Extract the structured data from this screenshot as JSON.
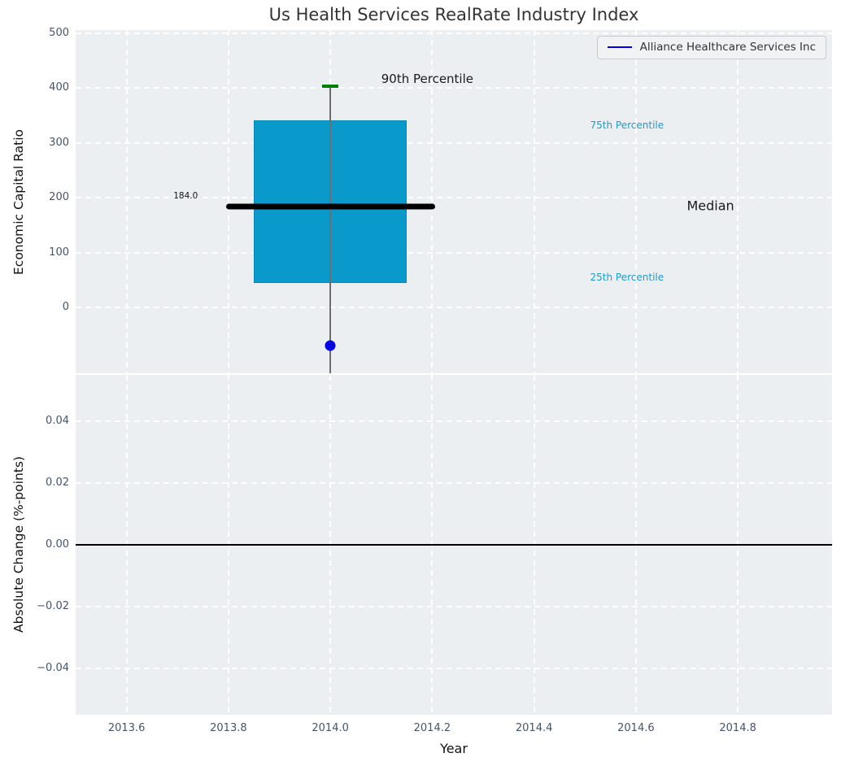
{
  "title": "Us Health Services RealRate Industry Index",
  "legend": {
    "label": "Alliance Healthcare Services Inc",
    "line_color": "#0000e6"
  },
  "colors": {
    "axes_background": "#eceff1",
    "grid": "#ffffff",
    "box_fill": "#0a99cb",
    "median_line": "#000000",
    "p90_cap": "#008000",
    "whisker": "#6e6e6e",
    "company_point": "#0000e6",
    "percentile_text": "#1e9bc7",
    "tick_text": "#46536b"
  },
  "chart_data": [
    {
      "type": "boxplot",
      "title": "Us Health Services RealRate Industry Index",
      "xlabel": "",
      "ylabel": "Economic Capital Ratio",
      "xlim": [
        2013.5,
        2014.985
      ],
      "ylim": [
        -120,
        506
      ],
      "grid": true,
      "legend_position": "upper right",
      "show_xtick_labels": false,
      "xticks": [
        {
          "v": 2013.6,
          "label": "2013.6"
        },
        {
          "v": 2013.8,
          "label": "2013.8"
        },
        {
          "v": 2014.0,
          "label": "2014.0"
        },
        {
          "v": 2014.2,
          "label": "2014.2"
        },
        {
          "v": 2014.4,
          "label": "2014.4"
        },
        {
          "v": 2014.6,
          "label": "2014.6"
        },
        {
          "v": 2014.8,
          "label": "2014.8"
        }
      ],
      "yticks": [
        {
          "v": 0,
          "label": "0"
        },
        {
          "v": 100,
          "label": "100"
        },
        {
          "v": 200,
          "label": "200"
        },
        {
          "v": 300,
          "label": "300"
        },
        {
          "v": 400,
          "label": "400"
        },
        {
          "v": 500,
          "label": "500"
        }
      ],
      "box": {
        "x": 2014.0,
        "box_width": 0.3,
        "q25": 45,
        "median": 184,
        "q75": 342,
        "p90": 404,
        "median_line_width": 0.41,
        "cap_width": 0.032,
        "whisker_low_clipped_at": -120
      },
      "company_point": {
        "name": "Alliance Healthcare Services Inc",
        "x": 2014.0,
        "y": -70
      },
      "annotations": {
        "p90": {
          "text": "90th Percentile",
          "x": 2014.1,
          "y": 417,
          "align": "left"
        },
        "p75": {
          "text": "75th Percentile",
          "x": 2014.51,
          "y": 333,
          "align": "left"
        },
        "median": {
          "text": "Median",
          "x": 2014.7,
          "y": 186,
          "align": "left"
        },
        "p25": {
          "text": "25th Percentile",
          "x": 2014.51,
          "y": 55,
          "align": "left"
        },
        "median_value": {
          "text": "184.0",
          "x": 2013.74,
          "y": 204,
          "align": "right"
        }
      }
    },
    {
      "type": "line",
      "xlabel": "Year",
      "ylabel": "Absolute Change (%-points)",
      "xlim": [
        2013.5,
        2014.985
      ],
      "ylim": [
        -0.055,
        0.055
      ],
      "grid": true,
      "show_xtick_labels": true,
      "axhline": 0.0,
      "series": [],
      "xticks": [
        {
          "v": 2013.6,
          "label": "2013.6"
        },
        {
          "v": 2013.8,
          "label": "2013.8"
        },
        {
          "v": 2014.0,
          "label": "2014.0"
        },
        {
          "v": 2014.2,
          "label": "2014.2"
        },
        {
          "v": 2014.4,
          "label": "2014.4"
        },
        {
          "v": 2014.6,
          "label": "2014.6"
        },
        {
          "v": 2014.8,
          "label": "2014.8"
        }
      ],
      "yticks": [
        {
          "v": 0.04,
          "label": "0.04"
        },
        {
          "v": 0.02,
          "label": "0.02"
        },
        {
          "v": 0.0,
          "label": "0.00"
        },
        {
          "v": -0.02,
          "label": "−0.02"
        },
        {
          "v": -0.04,
          "label": "−0.04"
        }
      ]
    }
  ]
}
